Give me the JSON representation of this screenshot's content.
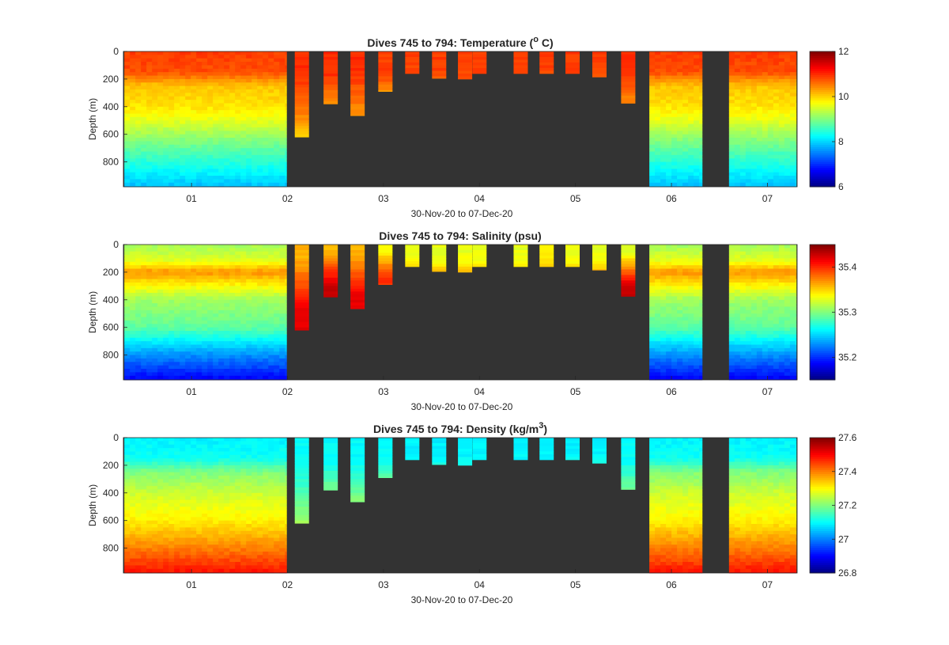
{
  "figure": {
    "xlabel": "30-Nov-20 to 07-Dec-20",
    "x_tick_labels": [
      "01",
      "02",
      "03",
      "04",
      "05",
      "06",
      "07"
    ],
    "y_tick_labels": [
      "0",
      "200",
      "400",
      "600",
      "800"
    ],
    "ylabel": "Depth (m)",
    "missing_data_color": "#333333",
    "colormap": "jet"
  },
  "chart_data": [
    {
      "type": "heatmap",
      "title": "Dives 745 to 794: Temperature (",
      "title_sup": "o",
      "title_after": " C)",
      "xlabel": "30-Nov-20 to 07-Dec-20",
      "ylabel": "Depth (m)",
      "x_range": [
        "30-Nov-20",
        "07-Dec-20"
      ],
      "x_ticks": [
        1,
        2,
        3,
        4,
        5,
        6,
        7
      ],
      "x_tick_labels": [
        "01",
        "02",
        "03",
        "04",
        "05",
        "06",
        "07"
      ],
      "y_ticks": [
        0,
        200,
        400,
        600,
        800
      ],
      "ylim": [
        0,
        1000
      ],
      "y_reversed": true,
      "colorbar": {
        "min": 6,
        "max": 12,
        "ticks": [
          6,
          8,
          10,
          12
        ],
        "tick_labels": [
          "6",
          "8",
          "10",
          "12"
        ]
      },
      "profile": [
        [
          0,
          10.9
        ],
        [
          150,
          10.8
        ],
        [
          250,
          10.1
        ],
        [
          400,
          9.9
        ],
        [
          500,
          9.6
        ],
        [
          650,
          9.0
        ],
        [
          850,
          8.3
        ],
        [
          1000,
          7.8
        ]
      ],
      "partial_dives": [
        {
          "day": 2.15,
          "max_depth": 620,
          "top_value": 11.0
        },
        {
          "day": 2.45,
          "max_depth": 380,
          "top_value": 11.0
        },
        {
          "day": 2.73,
          "max_depth": 465,
          "top_value": 11.0
        },
        {
          "day": 3.02,
          "max_depth": 290,
          "top_value": 10.9
        },
        {
          "day": 3.3,
          "max_depth": 160,
          "top_value": 10.9
        },
        {
          "day": 3.58,
          "max_depth": 195,
          "top_value": 10.9
        },
        {
          "day": 3.85,
          "max_depth": 200,
          "top_value": 10.9
        },
        {
          "day": 4.0,
          "max_depth": 160,
          "top_value": 10.9
        },
        {
          "day": 4.43,
          "max_depth": 160,
          "top_value": 10.9
        },
        {
          "day": 4.7,
          "max_depth": 160,
          "top_value": 10.9
        },
        {
          "day": 4.97,
          "max_depth": 160,
          "top_value": 10.9
        },
        {
          "day": 5.25,
          "max_depth": 185,
          "top_value": 10.9
        },
        {
          "day": 5.55,
          "max_depth": 375,
          "top_value": 11.0
        }
      ]
    },
    {
      "type": "heatmap",
      "title": "Dives 745 to 794: Salinity (psu)",
      "title_sup": "",
      "title_after": "",
      "xlabel": "30-Nov-20 to 07-Dec-20",
      "ylabel": "Depth (m)",
      "x_range": [
        "30-Nov-20",
        "07-Dec-20"
      ],
      "x_ticks": [
        1,
        2,
        3,
        4,
        5,
        6,
        7
      ],
      "x_tick_labels": [
        "01",
        "02",
        "03",
        "04",
        "05",
        "06",
        "07"
      ],
      "y_ticks": [
        0,
        200,
        400,
        600,
        800
      ],
      "ylim": [
        0,
        1000
      ],
      "y_reversed": true,
      "colorbar": {
        "min": 35.15,
        "max": 35.45,
        "ticks": [
          35.2,
          35.3,
          35.4
        ],
        "tick_labels": [
          "35.2",
          "35.3",
          "35.4"
        ]
      },
      "profile": [
        [
          0,
          35.31
        ],
        [
          120,
          35.33
        ],
        [
          200,
          35.37
        ],
        [
          260,
          35.35
        ],
        [
          400,
          35.31
        ],
        [
          600,
          35.29
        ],
        [
          800,
          35.23
        ],
        [
          1000,
          35.18
        ]
      ],
      "partial_dives": [
        {
          "day": 2.15,
          "max_depth": 620,
          "top_value": 35.36,
          "peak_value": 35.42
        },
        {
          "day": 2.45,
          "max_depth": 380,
          "top_value": 35.36,
          "peak_value": 35.43
        },
        {
          "day": 2.73,
          "max_depth": 465,
          "top_value": 35.36,
          "peak_value": 35.42
        },
        {
          "day": 3.02,
          "max_depth": 290,
          "top_value": 35.34,
          "peak_value": 35.4
        },
        {
          "day": 3.3,
          "max_depth": 160,
          "top_value": 35.33
        },
        {
          "day": 3.58,
          "max_depth": 195,
          "top_value": 35.33
        },
        {
          "day": 3.85,
          "max_depth": 200,
          "top_value": 35.33
        },
        {
          "day": 4.0,
          "max_depth": 160,
          "top_value": 35.33
        },
        {
          "day": 4.43,
          "max_depth": 160,
          "top_value": 35.33
        },
        {
          "day": 4.7,
          "max_depth": 160,
          "top_value": 35.34
        },
        {
          "day": 4.97,
          "max_depth": 160,
          "top_value": 35.33
        },
        {
          "day": 5.25,
          "max_depth": 185,
          "top_value": 35.33
        },
        {
          "day": 5.55,
          "max_depth": 375,
          "top_value": 35.33,
          "peak_value": 35.43
        }
      ]
    },
    {
      "type": "heatmap",
      "title": "Dives 745 to 794: Density (kg/m",
      "title_sup": "3",
      "title_after": ")",
      "xlabel": "30-Nov-20 to 07-Dec-20",
      "ylabel": "Depth (m)",
      "x_range": [
        "30-Nov-20",
        "07-Dec-20"
      ],
      "x_ticks": [
        1,
        2,
        3,
        4,
        5,
        6,
        7
      ],
      "x_tick_labels": [
        "01",
        "02",
        "03",
        "04",
        "05",
        "06",
        "07"
      ],
      "y_ticks": [
        0,
        200,
        400,
        600,
        800
      ],
      "ylim": [
        0,
        1000
      ],
      "y_reversed": true,
      "colorbar": {
        "min": 26.8,
        "max": 27.6,
        "ticks": [
          26.8,
          27.0,
          27.2,
          27.4,
          27.6
        ],
        "tick_labels": [
          "26.8",
          "27",
          "27.2",
          "27.4",
          "27.6"
        ]
      },
      "profile": [
        [
          0,
          27.09
        ],
        [
          150,
          27.11
        ],
        [
          250,
          27.2
        ],
        [
          400,
          27.26
        ],
        [
          600,
          27.31
        ],
        [
          800,
          27.4
        ],
        [
          1000,
          27.5
        ]
      ],
      "partial_dives": [
        {
          "day": 2.15,
          "max_depth": 620,
          "top_value": 27.1
        },
        {
          "day": 2.45,
          "max_depth": 380,
          "top_value": 27.1
        },
        {
          "day": 2.73,
          "max_depth": 465,
          "top_value": 27.1
        },
        {
          "day": 3.02,
          "max_depth": 290,
          "top_value": 27.1
        },
        {
          "day": 3.3,
          "max_depth": 160,
          "top_value": 27.09
        },
        {
          "day": 3.58,
          "max_depth": 195,
          "top_value": 27.09
        },
        {
          "day": 3.85,
          "max_depth": 200,
          "top_value": 27.09
        },
        {
          "day": 4.0,
          "max_depth": 160,
          "top_value": 27.09
        },
        {
          "day": 4.43,
          "max_depth": 160,
          "top_value": 27.09
        },
        {
          "day": 4.7,
          "max_depth": 160,
          "top_value": 27.09
        },
        {
          "day": 4.97,
          "max_depth": 160,
          "top_value": 27.09
        },
        {
          "day": 5.25,
          "max_depth": 185,
          "top_value": 27.09
        },
        {
          "day": 5.55,
          "max_depth": 375,
          "top_value": 27.1
        }
      ]
    }
  ],
  "full_dive_blocks": [
    {
      "start_day": 0.3,
      "end_day": 1.99,
      "max_depth": 980
    },
    {
      "start_day": 5.77,
      "end_day": 6.32,
      "max_depth": 980
    },
    {
      "start_day": 6.6,
      "end_day": 7.3,
      "max_depth": 980
    }
  ]
}
